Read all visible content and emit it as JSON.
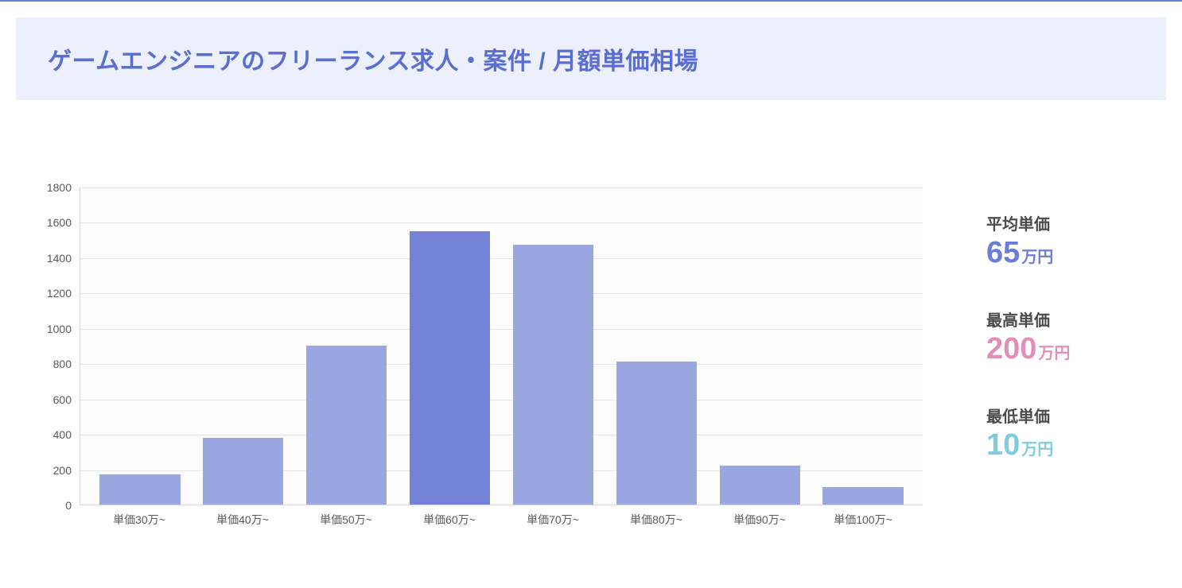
{
  "header": {
    "title": "ゲームエンジニアのフリーランス求人・案件 / 月額単価相場",
    "band_bg": "#eceffc",
    "title_color": "#5a6dd0",
    "top_rule_color": "#6b7ed6"
  },
  "chart": {
    "type": "bar",
    "categories": [
      "単価30万~",
      "単価40万~",
      "単価50万~",
      "単価60万~",
      "単価70万~",
      "単価80万~",
      "単価90万~",
      "単価100万~"
    ],
    "values": [
      170,
      380,
      900,
      1550,
      1470,
      810,
      220,
      100
    ],
    "bar_colors": [
      "#9aa6e0",
      "#9aa6e0",
      "#9aa6e0",
      "#7381d6",
      "#9aa6e0",
      "#9aa6e0",
      "#9aa6e0",
      "#9aa6e0"
    ],
    "ylim": [
      0,
      1800
    ],
    "ytick_step": 200,
    "yticks": [
      0,
      200,
      400,
      600,
      800,
      1000,
      1200,
      1400,
      1600,
      1800
    ],
    "background_color": "#ffffff",
    "grid_color": "#e6e6e6",
    "axis_color": "#d9d9d9",
    "tick_label_color": "#5a5a5a",
    "tick_fontsize": 14,
    "bar_width": 0.78
  },
  "stats": {
    "avg": {
      "label": "平均単価",
      "value": "65",
      "unit": "万円",
      "color": "#6b7ed6"
    },
    "max": {
      "label": "最高単価",
      "value": "200",
      "unit": "万円",
      "color": "#e08fb9"
    },
    "min": {
      "label": "最低単価",
      "value": "10",
      "unit": "万円",
      "color": "#7fcbe0"
    }
  }
}
